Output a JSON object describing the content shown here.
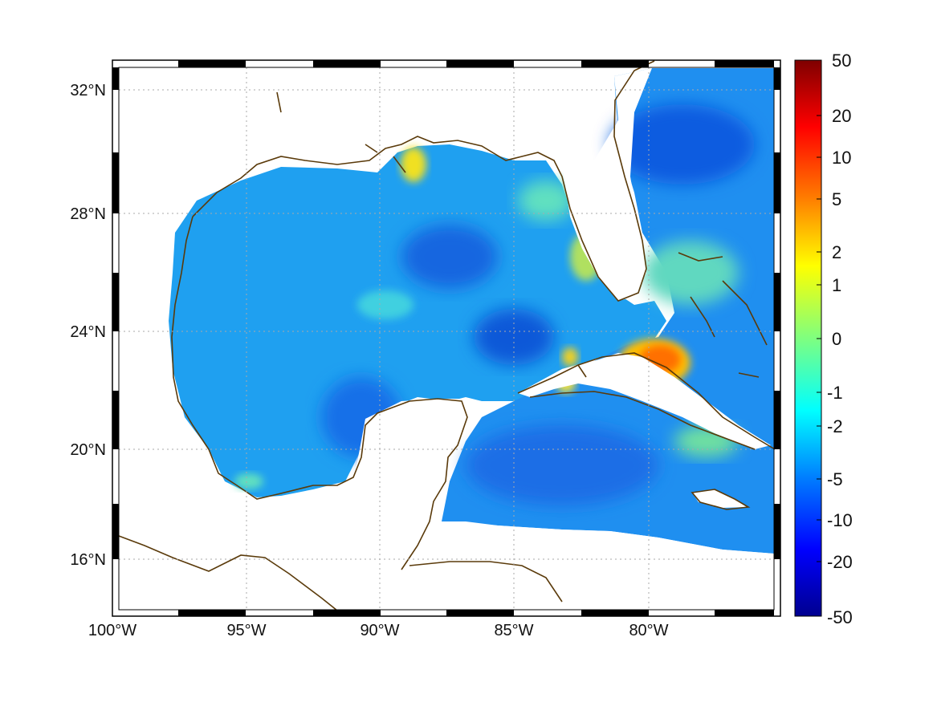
{
  "map": {
    "lon_labels": [
      "100°W",
      "95°W",
      "90°W",
      "85°W",
      "80°W"
    ],
    "lat_labels": [
      "32°N",
      "28°N",
      "24°N",
      "20°N",
      "16°N"
    ],
    "coastline_color": "#5a3a0a",
    "grid": true
  },
  "colorbar": {
    "labels": [
      "50",
      "20",
      "10",
      "5",
      "2",
      "1",
      "0",
      "-1",
      "-2",
      "-5",
      "-10",
      "-20",
      "-50"
    ],
    "colormap": "jet",
    "colors": [
      "#7f0000",
      "#ff0000",
      "#ff8000",
      "#ffff00",
      "#80ff80",
      "#00ffff",
      "#0080ff",
      "#0000ff",
      "#00008f"
    ]
  }
}
